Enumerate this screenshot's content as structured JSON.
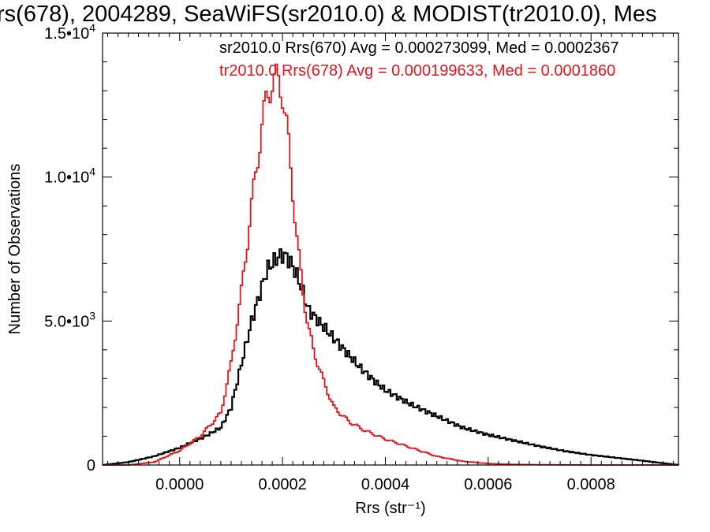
{
  "chart_data": {
    "type": "line",
    "title": "rs(678), 2004289, SeaWiFS(sr2010.0) & MODIST(tr2010.0), Mes",
    "xlabel": "Rrs (str⁻¹)",
    "ylabel": "Number of Observations",
    "xlim": [
      -0.00015,
      0.00097
    ],
    "ylim": [
      0,
      15000
    ],
    "x_ticks": [
      0.0,
      0.0002,
      0.0004,
      0.0006,
      0.0008
    ],
    "x_tick_labels": [
      "0.0000",
      "0.0002",
      "0.0004",
      "0.0006",
      "0.0008"
    ],
    "y_ticks": [
      0,
      5000,
      10000,
      15000
    ],
    "y_tick_labels": [
      {
        "mantissa": "0",
        "exp": ""
      },
      {
        "mantissa": "5.0•10",
        "exp": "3"
      },
      {
        "mantissa": "1.0•10",
        "exp": "4"
      },
      {
        "mantissa": "1.5•10",
        "exp": "4"
      }
    ],
    "step": "histogram",
    "grid": false,
    "legend_position": "top-right",
    "series": [
      {
        "name": "sr2010.0 Rrs(670) Avg = 0.000273099, Med = 0.0002367",
        "color": "#000000",
        "x": [
          -0.00015,
          -0.0001,
          -5e-05,
          0.0,
          5e-05,
          8e-05,
          0.0001,
          0.00012,
          0.00014,
          0.00016,
          0.00017,
          0.00018,
          0.00019,
          0.0002,
          0.00021,
          0.00022,
          0.00023,
          0.00024,
          0.00025,
          0.00026,
          0.00028,
          0.0003,
          0.00032,
          0.00035,
          0.00038,
          0.0004,
          0.00045,
          0.0005,
          0.00055,
          0.0006,
          0.00065,
          0.0007,
          0.00075,
          0.0008,
          0.00085,
          0.0009,
          0.00097
        ],
        "values": [
          0,
          100,
          300,
          600,
          1000,
          1300,
          2000,
          3500,
          5000,
          6200,
          6800,
          7000,
          7200,
          7300,
          7200,
          6900,
          6500,
          6000,
          5400,
          5200,
          4800,
          4400,
          4000,
          3400,
          2900,
          2600,
          2100,
          1700,
          1300,
          1050,
          850,
          650,
          480,
          350,
          250,
          150,
          0
        ]
      },
      {
        "name": "tr2010.0 Rrs(678) Avg = 0.000199633, Med = 0.0001860",
        "color": "#e8141b",
        "x": [
          -0.00015,
          -0.0001,
          -5e-05,
          0.0,
          4e-05,
          8e-05,
          0.0001,
          0.00012,
          0.00014,
          0.00016,
          0.00017,
          0.00018,
          0.00019,
          0.0002,
          0.00021,
          0.00022,
          0.00023,
          0.00024,
          0.00025,
          0.00026,
          0.00028,
          0.0003,
          0.00033,
          0.00036,
          0.0004,
          0.00045,
          0.0005,
          0.00055,
          0.0006,
          0.00065,
          0.0007,
          0.0008,
          0.00097
        ],
        "values": [
          0,
          0,
          100,
          500,
          1000,
          1800,
          3500,
          6000,
          9000,
          11800,
          12800,
          13300,
          13400,
          12900,
          11500,
          9500,
          7500,
          6000,
          4800,
          4000,
          2900,
          2000,
          1500,
          1200,
          900,
          600,
          300,
          130,
          50,
          20,
          10,
          0,
          0
        ]
      }
    ]
  }
}
